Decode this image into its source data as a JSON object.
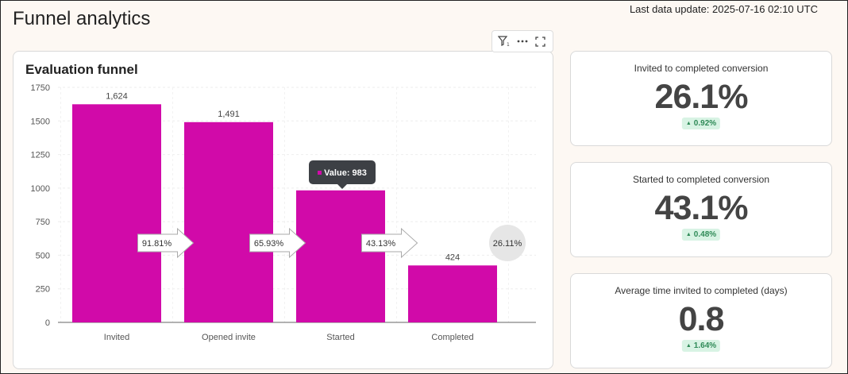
{
  "header": {
    "title": "Funnel analytics",
    "last_update": "Last data update: 2025-07-16 02:10 UTC"
  },
  "toolbar": {
    "icons": [
      "filter-icon",
      "more-icon",
      "expand-icon"
    ],
    "filter_count": "1"
  },
  "chart": {
    "title": "Evaluation funnel",
    "bar_color": "#d10aa9",
    "tooltip": "Value: 983"
  },
  "chart_data": {
    "type": "bar",
    "categories": [
      "Invited",
      "Opened invite",
      "Started",
      "Completed"
    ],
    "values": [
      1624,
      1491,
      983,
      424
    ],
    "value_labels": [
      "1,624",
      "1,491",
      "",
      "424"
    ],
    "step_conversions": [
      "91.81%",
      "65.93%",
      "43.13%"
    ],
    "overall_conversion": "26.11%",
    "ylim": [
      0,
      1750
    ],
    "yticks": [
      0,
      250,
      500,
      750,
      1000,
      1250,
      1500,
      1750
    ],
    "grid": true
  },
  "kpis": [
    {
      "label": "Invited to completed conversion",
      "value": "26.1%",
      "change": "0.92%",
      "trend": "up"
    },
    {
      "label": "Started to completed conversion",
      "value": "43.1%",
      "change": "0.48%",
      "trend": "up"
    },
    {
      "label": "Average time invited to completed (days)",
      "value": "0.8",
      "change": "1.64%",
      "trend": "up"
    }
  ],
  "colors": {
    "accent": "#d10aa9",
    "positive_bg": "#d8f3e4",
    "positive_text": "#2f8a57"
  }
}
